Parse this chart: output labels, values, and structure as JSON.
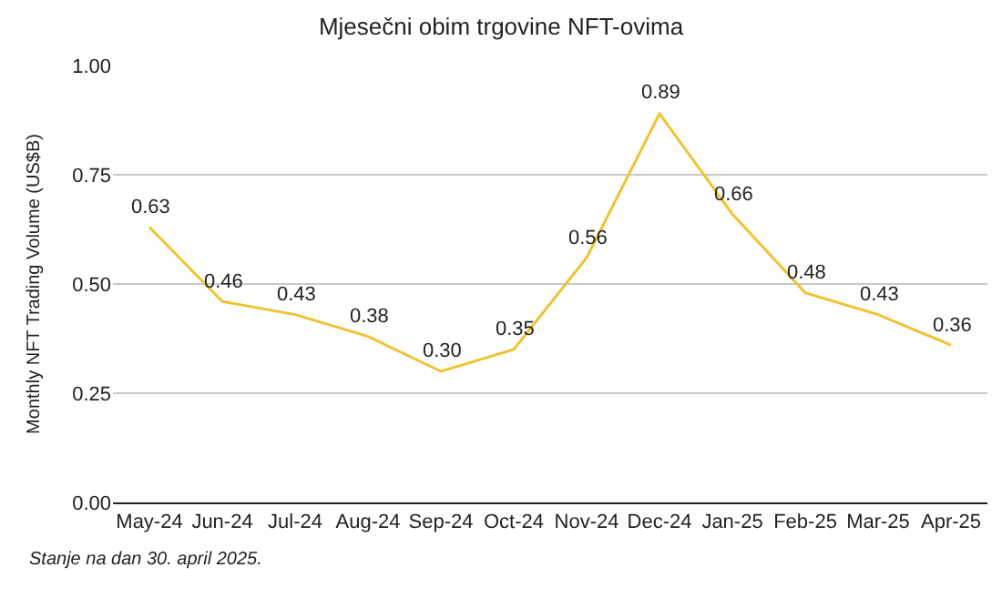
{
  "chart_data": {
    "type": "line",
    "title": "Mjesečni obim trgovine NFT-ovima",
    "ylabel": "Monthly NFT Trading Volume (US$B)",
    "categories": [
      "May-24",
      "Jun-24",
      "Jul-24",
      "Aug-24",
      "Sep-24",
      "Oct-24",
      "Nov-24",
      "Dec-24",
      "Jan-25",
      "Feb-25",
      "Mar-25",
      "Apr-25"
    ],
    "series": [
      {
        "color": "#f1c232",
        "values": [
          0.63,
          0.46,
          0.43,
          0.38,
          0.3,
          0.35,
          0.56,
          0.89,
          0.66,
          0.48,
          0.43,
          0.36
        ],
        "value_labels": [
          "0.63",
          "0.46",
          "0.43",
          "0.38",
          "0.30",
          "0.35",
          "0.56",
          "0.89",
          "0.66",
          "0.48",
          "0.43",
          "0.36"
        ]
      }
    ],
    "ylim": [
      0,
      1
    ],
    "yticks": [
      {
        "value": 0,
        "label": "0.00"
      },
      {
        "value": 0.25,
        "label": "0.25"
      },
      {
        "value": 0.5,
        "label": "0.50"
      },
      {
        "value": 0.75,
        "label": "0.75"
      },
      {
        "value": 1,
        "label": "1.00"
      }
    ],
    "grid": "y",
    "marker": "none",
    "line_style": "solid",
    "annotations": [
      "Stanje na dan 30. april 2025."
    ]
  }
}
